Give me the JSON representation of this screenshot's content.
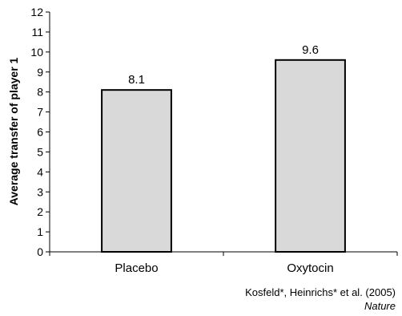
{
  "chart_data": {
    "type": "bar",
    "categories": [
      "Placebo",
      "Oxytocin"
    ],
    "values": [
      8.1,
      9.6
    ],
    "data_labels": [
      "8.1",
      "9.6"
    ],
    "ylabel": "Average transfer of player 1",
    "xlabel": "",
    "ylim": [
      0,
      12
    ],
    "yticks": [
      0,
      1,
      2,
      3,
      4,
      5,
      6,
      7,
      8,
      9,
      10,
      11,
      12
    ],
    "grid": false,
    "bar_fill": "#d9d9d9",
    "bar_stroke": "#000000"
  },
  "citation": {
    "authors": "Kosfeld*, Heinrichs* et al. (2005)",
    "journal": "Nature"
  }
}
